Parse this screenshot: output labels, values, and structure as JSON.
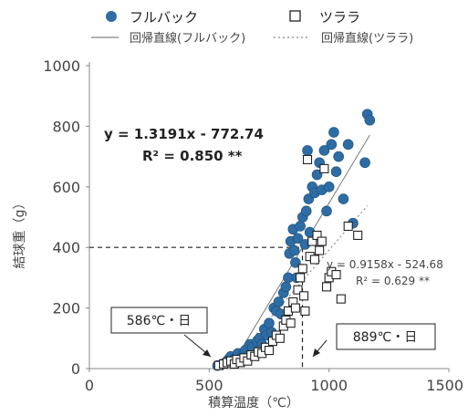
{
  "chart_data": {
    "type": "scatter",
    "title": "",
    "xlabel": "積算温度（℃）",
    "ylabel": "結球重（g）",
    "xlim": [
      0,
      1500
    ],
    "ylim": [
      0,
      1000
    ],
    "x_ticks": [
      "0",
      "500",
      "1000",
      "1500"
    ],
    "y_ticks": [
      "0",
      "200",
      "400",
      "600",
      "800",
      "1000"
    ],
    "grid": false,
    "legend_position": "top",
    "colors": {
      "fullback": "#2e6da4",
      "tsurara": "#ffffff",
      "marker_outline": "#222222"
    },
    "series": [
      {
        "name": "フルバック",
        "marker": "filled-circle",
        "points": [
          [
            535,
            10
          ],
          [
            555,
            15
          ],
          [
            570,
            20
          ],
          [
            580,
            30
          ],
          [
            590,
            40
          ],
          [
            600,
            25
          ],
          [
            610,
            35
          ],
          [
            620,
            50
          ],
          [
            640,
            45
          ],
          [
            650,
            60
          ],
          [
            660,
            40
          ],
          [
            670,
            80
          ],
          [
            680,
            70
          ],
          [
            700,
            90
          ],
          [
            710,
            100
          ],
          [
            720,
            80
          ],
          [
            730,
            130
          ],
          [
            740,
            110
          ],
          [
            750,
            150
          ],
          [
            760,
            120
          ],
          [
            770,
            200
          ],
          [
            780,
            190
          ],
          [
            790,
            220
          ],
          [
            800,
            180
          ],
          [
            810,
            250
          ],
          [
            820,
            270
          ],
          [
            830,
            300
          ],
          [
            835,
            380
          ],
          [
            840,
            420
          ],
          [
            850,
            460
          ],
          [
            855,
            390
          ],
          [
            860,
            350
          ],
          [
            865,
            300
          ],
          [
            870,
            430
          ],
          [
            880,
            470
          ],
          [
            890,
            500
          ],
          [
            900,
            410
          ],
          [
            905,
            520
          ],
          [
            910,
            720
          ],
          [
            915,
            560
          ],
          [
            920,
            450
          ],
          [
            930,
            600
          ],
          [
            940,
            580
          ],
          [
            950,
            640
          ],
          [
            960,
            680
          ],
          [
            970,
            590
          ],
          [
            980,
            720
          ],
          [
            990,
            520
          ],
          [
            1000,
            600
          ],
          [
            1010,
            740
          ],
          [
            1020,
            780
          ],
          [
            1030,
            650
          ],
          [
            1040,
            700
          ],
          [
            1060,
            560
          ],
          [
            1080,
            740
          ],
          [
            1100,
            480
          ],
          [
            1150,
            680
          ],
          [
            1160,
            840
          ],
          [
            1170,
            820
          ]
        ]
      },
      {
        "name": "ツララ",
        "marker": "open-square",
        "points": [
          [
            540,
            10
          ],
          [
            560,
            15
          ],
          [
            575,
            20
          ],
          [
            590,
            25
          ],
          [
            605,
            15
          ],
          [
            615,
            30
          ],
          [
            630,
            20
          ],
          [
            645,
            35
          ],
          [
            660,
            25
          ],
          [
            675,
            45
          ],
          [
            690,
            40
          ],
          [
            705,
            55
          ],
          [
            720,
            50
          ],
          [
            735,
            70
          ],
          [
            750,
            60
          ],
          [
            765,
            90
          ],
          [
            780,
            110
          ],
          [
            795,
            100
          ],
          [
            810,
            140
          ],
          [
            820,
            160
          ],
          [
            830,
            190
          ],
          [
            840,
            150
          ],
          [
            850,
            220
          ],
          [
            860,
            200
          ],
          [
            870,
            260
          ],
          [
            880,
            300
          ],
          [
            890,
            330
          ],
          [
            895,
            240
          ],
          [
            900,
            190
          ],
          [
            910,
            690
          ],
          [
            920,
            370
          ],
          [
            930,
            420
          ],
          [
            940,
            360
          ],
          [
            950,
            440
          ],
          [
            960,
            390
          ],
          [
            970,
            420
          ],
          [
            980,
            660
          ],
          [
            990,
            270
          ],
          [
            1000,
            300
          ],
          [
            1010,
            320
          ],
          [
            1030,
            310
          ],
          [
            1050,
            230
          ],
          [
            1080,
            470
          ],
          [
            1120,
            440
          ]
        ]
      }
    ],
    "regressions": [
      {
        "name": "回帰直線(フルバック)",
        "equation": "y = 1.3191x - 772.74",
        "r2": "R² = 0.850 **",
        "slope": 1.3191,
        "intercept": -772.74,
        "x_range": [
          586,
          1170
        ]
      },
      {
        "name": "回帰直線(ツララ)",
        "equation": "y = 0.9158x - 524.68",
        "r2": "R² = 0.629 **",
        "slope": 0.9158,
        "intercept": -524.68,
        "x_range": [
          573,
          1160
        ]
      }
    ],
    "reference_lines": {
      "y_value": 400,
      "x_value": 889
    },
    "callouts": [
      {
        "label": "586℃・日",
        "x": 586,
        "y": 0
      },
      {
        "label": "889℃・日",
        "x": 889,
        "y": 0
      }
    ]
  }
}
